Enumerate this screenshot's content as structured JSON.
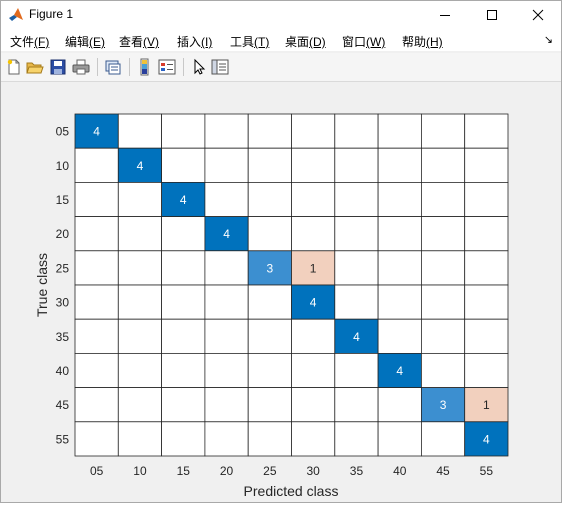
{
  "window": {
    "title": "Figure 1"
  },
  "menubar": {
    "items": [
      {
        "text": "文件",
        "key": "(F)"
      },
      {
        "text": "编辑",
        "key": "(E)"
      },
      {
        "text": "查看",
        "key": "(V)"
      },
      {
        "text": "插入",
        "key": "(I)"
      },
      {
        "text": "工具",
        "key": "(T)"
      },
      {
        "text": "桌面",
        "key": "(D)"
      },
      {
        "text": "窗口",
        "key": "(W)"
      },
      {
        "text": "帮助",
        "key": "(H)"
      }
    ],
    "overflow_icon": "arrow-icon"
  },
  "toolbar": {
    "buttons": [
      "new-figure-icon",
      "open-file-icon",
      "save-icon",
      "print-icon",
      "link-plot-icon",
      "colorbar-icon",
      "legend-icon",
      "pointer-icon",
      "property-inspector-icon"
    ]
  },
  "colors": {
    "diag_full": "#0072bd",
    "diag_partial": "#3c8fd0",
    "off_diag": "#f2d0be",
    "grid": "#262626"
  },
  "chart_data": {
    "type": "heatmap",
    "xlabel": "Predicted class",
    "ylabel": "True class",
    "x_labels": [
      "05",
      "10",
      "15",
      "20",
      "25",
      "30",
      "35",
      "40",
      "45",
      "55"
    ],
    "y_labels": [
      "05",
      "10",
      "15",
      "20",
      "25",
      "30",
      "35",
      "40",
      "45",
      "55"
    ],
    "matrix": [
      [
        4,
        0,
        0,
        0,
        0,
        0,
        0,
        0,
        0,
        0
      ],
      [
        0,
        4,
        0,
        0,
        0,
        0,
        0,
        0,
        0,
        0
      ],
      [
        0,
        0,
        4,
        0,
        0,
        0,
        0,
        0,
        0,
        0
      ],
      [
        0,
        0,
        0,
        4,
        0,
        0,
        0,
        0,
        0,
        0
      ],
      [
        0,
        0,
        0,
        0,
        3,
        1,
        0,
        0,
        0,
        0
      ],
      [
        0,
        0,
        0,
        0,
        0,
        4,
        0,
        0,
        0,
        0
      ],
      [
        0,
        0,
        0,
        0,
        0,
        0,
        4,
        0,
        0,
        0
      ],
      [
        0,
        0,
        0,
        0,
        0,
        0,
        0,
        4,
        0,
        0
      ],
      [
        0,
        0,
        0,
        0,
        0,
        0,
        0,
        0,
        3,
        1
      ],
      [
        0,
        0,
        0,
        0,
        0,
        0,
        0,
        0,
        0,
        4
      ]
    ]
  }
}
